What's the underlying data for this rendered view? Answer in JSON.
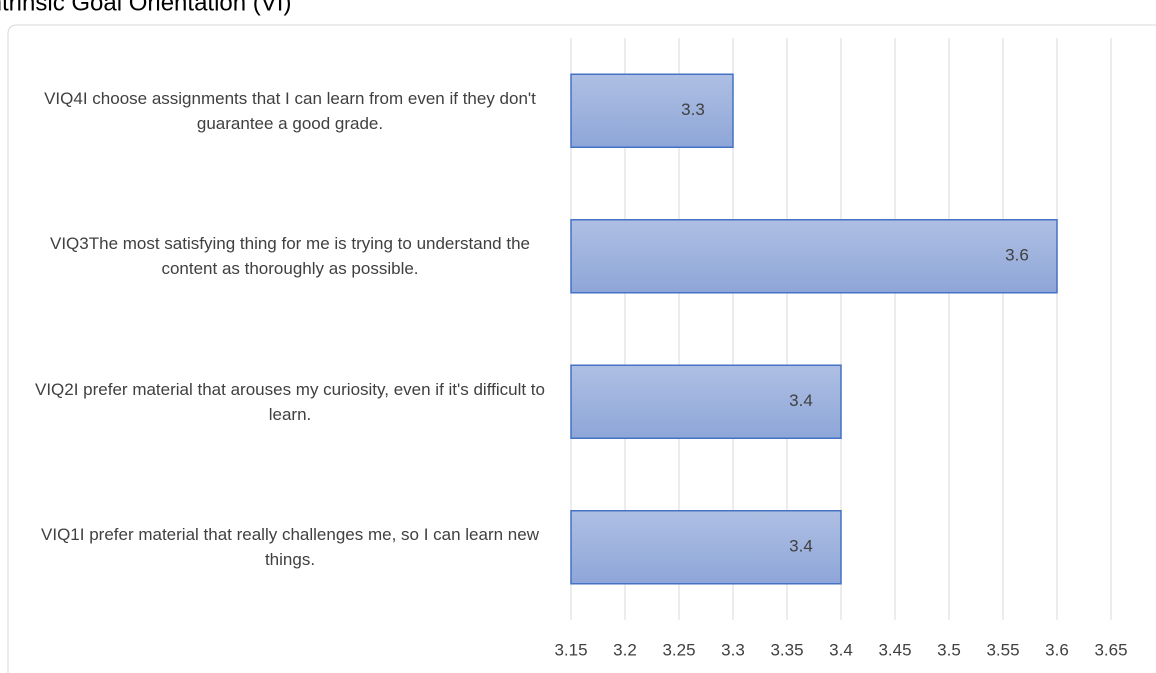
{
  "chart_data": {
    "type": "bar",
    "orientation": "horizontal",
    "title": "Intrinsic Goal Orientation (VI)",
    "categories": [
      "VIQ4I choose assignments that I can learn from even if they don't guarantee a good grade.",
      "VIQ3The most satisfying thing for me is trying to understand the content as thoroughly as possible.",
      "VIQ2I prefer material that arouses my curiosity, even if it's difficult to learn.",
      "VIQ1I prefer material that really challenges me, so I can learn new things."
    ],
    "values": [
      3.3,
      3.6,
      3.4,
      3.4
    ],
    "color": "#4472c4",
    "xlim": [
      3.15,
      3.65
    ],
    "xticks": [
      3.15,
      3.2,
      3.25,
      3.3,
      3.35,
      3.4,
      3.45,
      3.5,
      3.55,
      3.6,
      3.65
    ],
    "grid": true
  }
}
